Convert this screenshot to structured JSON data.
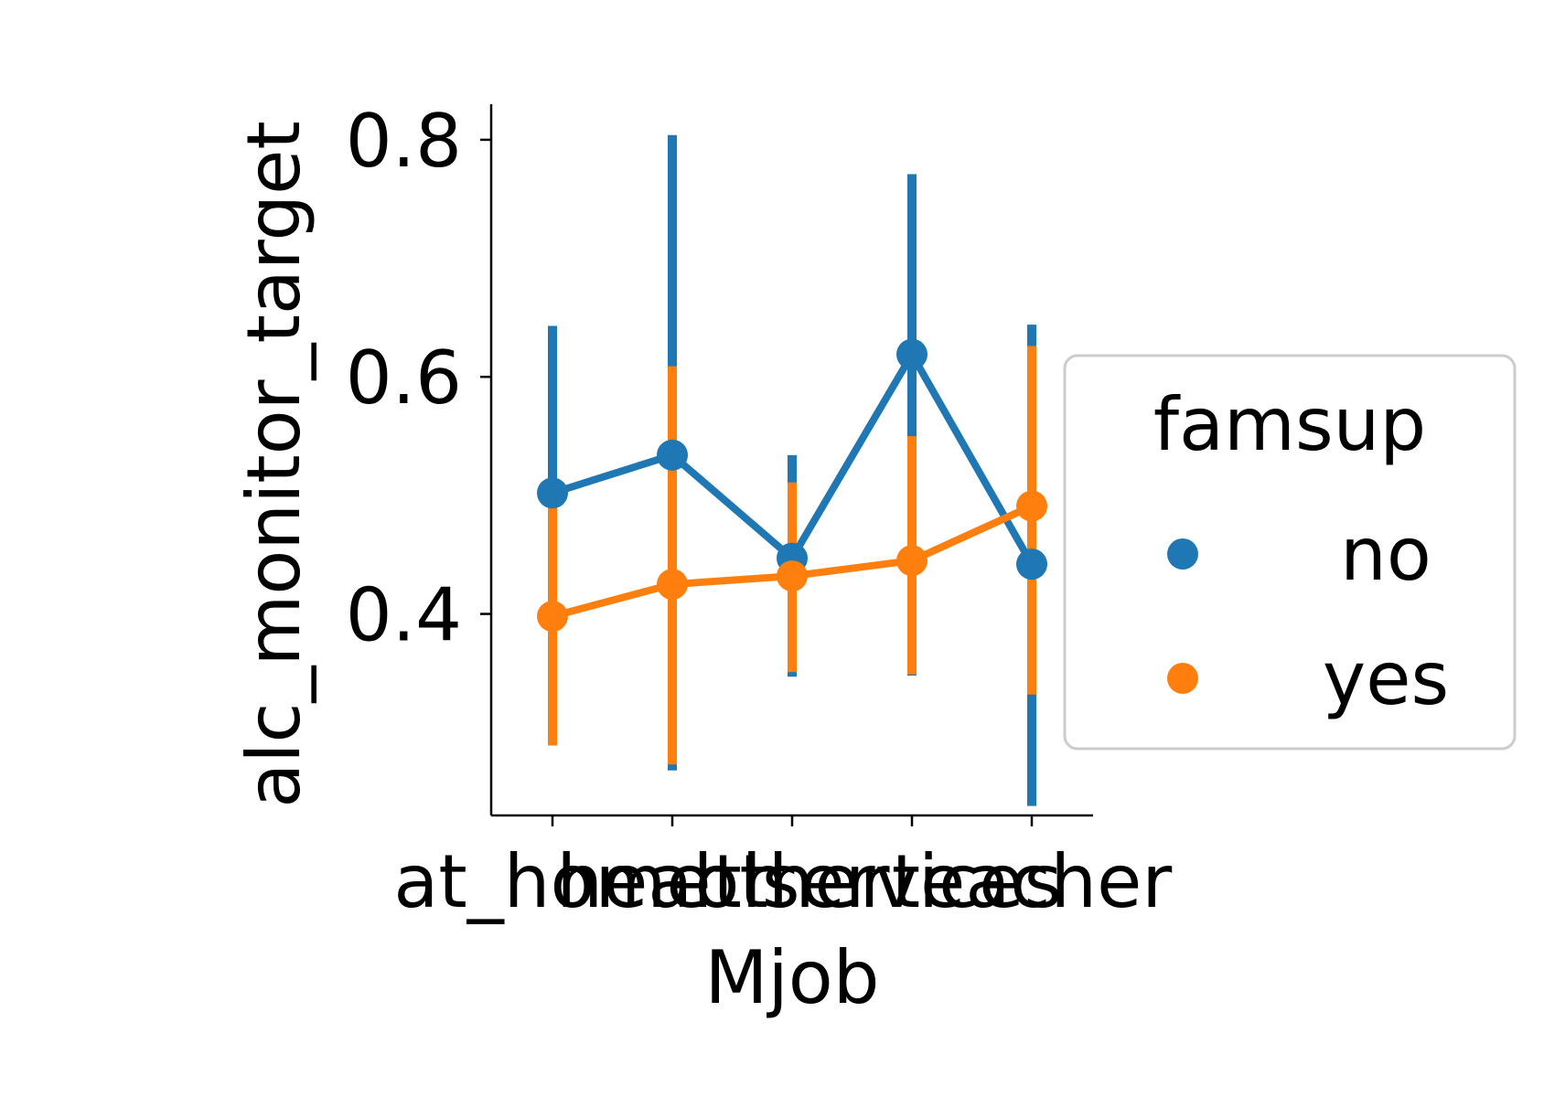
{
  "chart_data": {
    "type": "line",
    "xlabel": "Mjob",
    "ylabel": "alc_monitor_target",
    "categories": [
      "at_home",
      "health",
      "other",
      "services",
      "teacher"
    ],
    "yticks": [
      "0.4",
      "0.6",
      "0.8"
    ],
    "ylim": [
      0.23,
      0.83
    ],
    "grid": false,
    "legend": {
      "title": "famsup",
      "placement": "center-right-outside"
    },
    "series": [
      {
        "name": "no",
        "color": "#1f77b4",
        "values": [
          0.502,
          0.534,
          0.447,
          0.619,
          0.442
        ],
        "ci_low": [
          0.33,
          0.268,
          0.347,
          0.348,
          0.238
        ],
        "ci_high": [
          0.643,
          0.804,
          0.534,
          0.771,
          0.644
        ]
      },
      {
        "name": "yes",
        "color": "#ff7f0e",
        "values": [
          0.398,
          0.425,
          0.432,
          0.445,
          0.491
        ],
        "ci_low": [
          0.289,
          0.273,
          0.351,
          0.349,
          0.332
        ],
        "ci_high": [
          0.498,
          0.609,
          0.511,
          0.55,
          0.626
        ]
      }
    ]
  }
}
